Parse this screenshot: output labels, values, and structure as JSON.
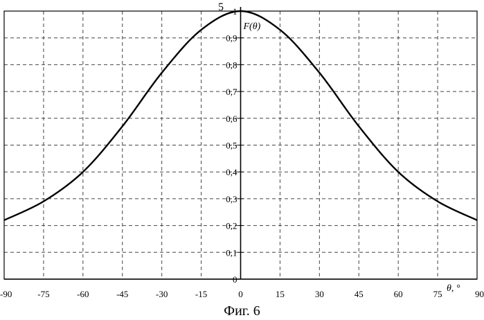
{
  "caption": "Фиг. 6",
  "chart_data": {
    "type": "line",
    "title": "",
    "xlabel": "θ, °",
    "ylabel": "F(θ)",
    "ref_label": "5",
    "xlim": [
      -90,
      90
    ],
    "ylim": [
      0,
      1
    ],
    "grid": true,
    "grid_style": "dashed",
    "x_ticks": [
      -90,
      -75,
      -60,
      -45,
      -30,
      -15,
      0,
      15,
      30,
      45,
      60,
      75,
      90
    ],
    "x_tick_labels": [
      "-90",
      "-75",
      "-60",
      "-45",
      "-30",
      "-15",
      "0",
      "15",
      "30",
      "45",
      "60",
      "75",
      "90"
    ],
    "y_ticks": [
      0,
      0.1,
      0.2,
      0.3,
      0.4,
      0.5,
      0.6,
      0.7,
      0.8,
      0.9,
      1
    ],
    "y_tick_labels": [
      "0",
      "0,1",
      "0,2",
      "0,3",
      "0,4",
      "0,5",
      "0,6",
      "0,7",
      "0,8",
      "0,9",
      "1"
    ],
    "series": [
      {
        "color": "#000000",
        "x": [
          -90,
          -75,
          -60,
          -45,
          -30,
          -15,
          0,
          15,
          30,
          45,
          60,
          75,
          90
        ],
        "y": [
          0.22,
          0.29,
          0.4,
          0.57,
          0.77,
          0.93,
          1.0,
          0.93,
          0.77,
          0.57,
          0.4,
          0.29,
          0.22
        ]
      }
    ]
  }
}
